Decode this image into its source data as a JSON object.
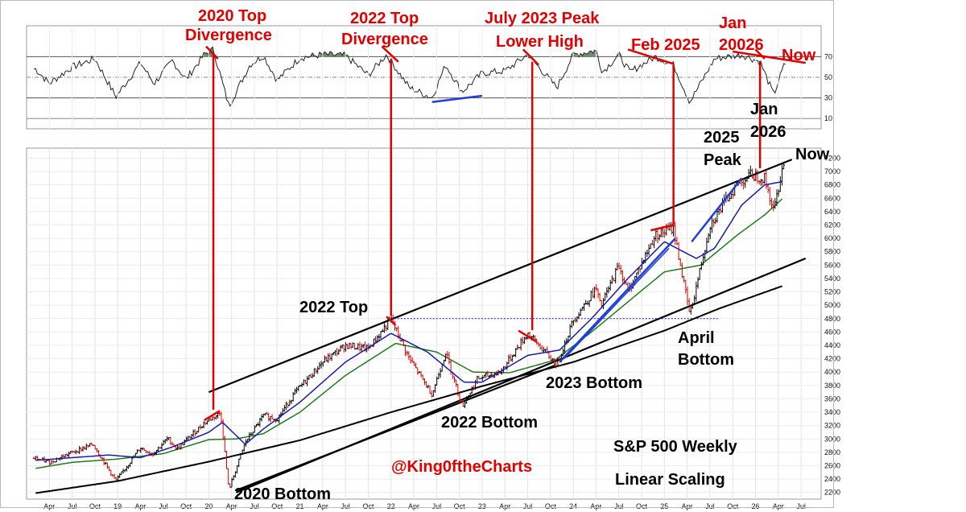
{
  "chart_data": {
    "type": "line",
    "title": "S&P 500 Weekly",
    "subtitle": "Linear Scaling",
    "handle": "@King0ftheCharts",
    "colors": {
      "price": "#000000",
      "up_bar": "#000000",
      "down_bar": "#e00000",
      "ma_short": "#1a1aa8",
      "ma_mid": "#1d7a1d",
      "ma_long": "#000000",
      "annotation": "#e00000",
      "trendline_blue": "#1f3fd6",
      "rsi": "#222222",
      "rsi_overbought_fill": "#6f8f6f"
    },
    "x_ticks": [
      {
        "t": 2018.25,
        "label": "Apr"
      },
      {
        "t": 2018.5,
        "label": "Jul"
      },
      {
        "t": 2018.75,
        "label": "Oct"
      },
      {
        "t": 2019.0,
        "label": "19"
      },
      {
        "t": 2019.25,
        "label": "Apr"
      },
      {
        "t": 2019.5,
        "label": "Jul"
      },
      {
        "t": 2019.75,
        "label": "Oct"
      },
      {
        "t": 2020.0,
        "label": "20"
      },
      {
        "t": 2020.25,
        "label": "Apr"
      },
      {
        "t": 2020.5,
        "label": "Jul"
      },
      {
        "t": 2020.75,
        "label": "Oct"
      },
      {
        "t": 2021.0,
        "label": "21"
      },
      {
        "t": 2021.25,
        "label": "Apr"
      },
      {
        "t": 2021.5,
        "label": "Jul"
      },
      {
        "t": 2021.75,
        "label": "Oct"
      },
      {
        "t": 2022.0,
        "label": "22"
      },
      {
        "t": 2022.25,
        "label": "Apr"
      },
      {
        "t": 2022.5,
        "label": "Jul"
      },
      {
        "t": 2022.75,
        "label": "Oct"
      },
      {
        "t": 2023.0,
        "label": "23"
      },
      {
        "t": 2023.25,
        "label": "Apr"
      },
      {
        "t": 2023.5,
        "label": "Jul"
      },
      {
        "t": 2023.75,
        "label": "Oct"
      },
      {
        "t": 2024.0,
        "label": "24"
      },
      {
        "t": 2024.25,
        "label": "Apr"
      },
      {
        "t": 2024.5,
        "label": "Jul"
      },
      {
        "t": 2024.75,
        "label": "Oct"
      },
      {
        "t": 2025.0,
        "label": "25"
      },
      {
        "t": 2025.25,
        "label": "Apr"
      },
      {
        "t": 2025.5,
        "label": "Jul"
      },
      {
        "t": 2025.75,
        "label": "Oct"
      },
      {
        "t": 2026.0,
        "label": "26"
      },
      {
        "t": 2026.25,
        "label": "Apr"
      },
      {
        "t": 2026.5,
        "label": "Jul"
      }
    ],
    "price_axis": {
      "ylim": [
        2100,
        7350
      ],
      "ticks": [
        2200,
        2400,
        2600,
        2800,
        3000,
        3200,
        3400,
        3600,
        3800,
        4000,
        4200,
        4400,
        4600,
        4800,
        5000,
        5200,
        5400,
        5600,
        5800,
        6000,
        6200,
        6400,
        6600,
        6800,
        7000,
        7200
      ]
    },
    "rsi_axis": {
      "ylim": [
        0,
        100
      ],
      "ticks": [
        10,
        30,
        50,
        70
      ],
      "overbought": 70,
      "midline": 50,
      "oversold": 30
    },
    "price_series": [
      {
        "t": 2018.1,
        "v": 2710
      },
      {
        "t": 2018.25,
        "v": 2650
      },
      {
        "t": 2018.5,
        "v": 2800
      },
      {
        "t": 2018.73,
        "v": 2920
      },
      {
        "t": 2018.98,
        "v": 2370
      },
      {
        "t": 2019.25,
        "v": 2870
      },
      {
        "t": 2019.38,
        "v": 2770
      },
      {
        "t": 2019.55,
        "v": 3010
      },
      {
        "t": 2019.65,
        "v": 2850
      },
      {
        "t": 2019.95,
        "v": 3240
      },
      {
        "t": 2020.13,
        "v": 3390
      },
      {
        "t": 2020.22,
        "v": 2240
      },
      {
        "t": 2020.4,
        "v": 2950
      },
      {
        "t": 2020.6,
        "v": 3350
      },
      {
        "t": 2020.75,
        "v": 3300
      },
      {
        "t": 2020.95,
        "v": 3700
      },
      {
        "t": 2021.25,
        "v": 4150
      },
      {
        "t": 2021.5,
        "v": 4400
      },
      {
        "t": 2021.75,
        "v": 4350
      },
      {
        "t": 2022.0,
        "v": 4790
      },
      {
        "t": 2022.2,
        "v": 4200
      },
      {
        "t": 2022.45,
        "v": 3670
      },
      {
        "t": 2022.6,
        "v": 4300
      },
      {
        "t": 2022.78,
        "v": 3490
      },
      {
        "t": 2022.95,
        "v": 3900
      },
      {
        "t": 2023.2,
        "v": 4000
      },
      {
        "t": 2023.5,
        "v": 4580
      },
      {
        "t": 2023.82,
        "v": 4110
      },
      {
        "t": 2024.0,
        "v": 4780
      },
      {
        "t": 2024.25,
        "v": 5250
      },
      {
        "t": 2024.3,
        "v": 4970
      },
      {
        "t": 2024.5,
        "v": 5600
      },
      {
        "t": 2024.6,
        "v": 5200
      },
      {
        "t": 2024.9,
        "v": 6050
      },
      {
        "t": 2025.1,
        "v": 6150
      },
      {
        "t": 2025.28,
        "v": 4850
      },
      {
        "t": 2025.5,
        "v": 6200
      },
      {
        "t": 2025.8,
        "v": 6820
      },
      {
        "t": 2025.95,
        "v": 6950
      },
      {
        "t": 2026.1,
        "v": 6900
      },
      {
        "t": 2026.2,
        "v": 6400
      },
      {
        "t": 2026.3,
        "v": 7100
      }
    ],
    "ma_short_series": [
      {
        "t": 2018.1,
        "v": 2680
      },
      {
        "t": 2018.5,
        "v": 2720
      },
      {
        "t": 2018.9,
        "v": 2760
      },
      {
        "t": 2019.25,
        "v": 2720
      },
      {
        "t": 2019.6,
        "v": 2880
      },
      {
        "t": 2020.0,
        "v": 3100
      },
      {
        "t": 2020.15,
        "v": 3250
      },
      {
        "t": 2020.4,
        "v": 2920
      },
      {
        "t": 2020.6,
        "v": 3150
      },
      {
        "t": 2021.0,
        "v": 3550
      },
      {
        "t": 2021.5,
        "v": 4150
      },
      {
        "t": 2022.0,
        "v": 4580
      },
      {
        "t": 2022.4,
        "v": 4300
      },
      {
        "t": 2022.8,
        "v": 3850
      },
      {
        "t": 2023.0,
        "v": 3850
      },
      {
        "t": 2023.5,
        "v": 4250
      },
      {
        "t": 2023.85,
        "v": 4330
      },
      {
        "t": 2024.2,
        "v": 4800
      },
      {
        "t": 2024.6,
        "v": 5400
      },
      {
        "t": 2025.0,
        "v": 5950
      },
      {
        "t": 2025.35,
        "v": 5700
      },
      {
        "t": 2025.55,
        "v": 5850
      },
      {
        "t": 2025.85,
        "v": 6500
      },
      {
        "t": 2026.1,
        "v": 6800
      },
      {
        "t": 2026.3,
        "v": 6850
      }
    ],
    "ma_mid_series": [
      {
        "t": 2018.1,
        "v": 2560
      },
      {
        "t": 2018.5,
        "v": 2650
      },
      {
        "t": 2019.0,
        "v": 2700
      },
      {
        "t": 2019.5,
        "v": 2780
      },
      {
        "t": 2020.0,
        "v": 2990
      },
      {
        "t": 2020.3,
        "v": 3000
      },
      {
        "t": 2020.6,
        "v": 3080
      },
      {
        "t": 2021.0,
        "v": 3400
      },
      {
        "t": 2021.5,
        "v": 3950
      },
      {
        "t": 2022.05,
        "v": 4430
      },
      {
        "t": 2022.5,
        "v": 4300
      },
      {
        "t": 2022.9,
        "v": 4000
      },
      {
        "t": 2023.3,
        "v": 3990
      },
      {
        "t": 2023.8,
        "v": 4180
      },
      {
        "t": 2024.2,
        "v": 4600
      },
      {
        "t": 2024.6,
        "v": 5050
      },
      {
        "t": 2025.0,
        "v": 5500
      },
      {
        "t": 2025.4,
        "v": 5600
      },
      {
        "t": 2025.8,
        "v": 6050
      },
      {
        "t": 2026.1,
        "v": 6350
      },
      {
        "t": 2026.3,
        "v": 6600
      }
    ],
    "ma_long_series": [
      {
        "t": 2018.1,
        "v": 2190
      },
      {
        "t": 2019.0,
        "v": 2370
      },
      {
        "t": 2020.0,
        "v": 2660
      },
      {
        "t": 2021.0,
        "v": 2980
      },
      {
        "t": 2022.0,
        "v": 3400
      },
      {
        "t": 2023.0,
        "v": 3790
      },
      {
        "t": 2024.0,
        "v": 4150
      },
      {
        "t": 2025.0,
        "v": 4620
      },
      {
        "t": 2025.6,
        "v": 4950
      },
      {
        "t": 2026.3,
        "v": 5290
      }
    ],
    "rsi_series": [
      {
        "t": 2018.1,
        "v": 58
      },
      {
        "t": 2018.25,
        "v": 44
      },
      {
        "t": 2018.5,
        "v": 60
      },
      {
        "t": 2018.75,
        "v": 68
      },
      {
        "t": 2018.98,
        "v": 31
      },
      {
        "t": 2019.25,
        "v": 64
      },
      {
        "t": 2019.4,
        "v": 44
      },
      {
        "t": 2019.6,
        "v": 66
      },
      {
        "t": 2019.75,
        "v": 48
      },
      {
        "t": 2019.95,
        "v": 72
      },
      {
        "t": 2020.05,
        "v": 77
      },
      {
        "t": 2020.22,
        "v": 22
      },
      {
        "t": 2020.45,
        "v": 62
      },
      {
        "t": 2020.6,
        "v": 71
      },
      {
        "t": 2020.75,
        "v": 47
      },
      {
        "t": 2021.0,
        "v": 69
      },
      {
        "t": 2021.25,
        "v": 72
      },
      {
        "t": 2021.5,
        "v": 71
      },
      {
        "t": 2021.75,
        "v": 52
      },
      {
        "t": 2021.95,
        "v": 72
      },
      {
        "t": 2022.2,
        "v": 40
      },
      {
        "t": 2022.45,
        "v": 30
      },
      {
        "t": 2022.6,
        "v": 62
      },
      {
        "t": 2022.78,
        "v": 36
      },
      {
        "t": 2023.0,
        "v": 54
      },
      {
        "t": 2023.25,
        "v": 56
      },
      {
        "t": 2023.5,
        "v": 72
      },
      {
        "t": 2023.82,
        "v": 40
      },
      {
        "t": 2024.0,
        "v": 72
      },
      {
        "t": 2024.25,
        "v": 76
      },
      {
        "t": 2024.32,
        "v": 55
      },
      {
        "t": 2024.5,
        "v": 72
      },
      {
        "t": 2024.62,
        "v": 55
      },
      {
        "t": 2024.9,
        "v": 70
      },
      {
        "t": 2025.1,
        "v": 62
      },
      {
        "t": 2025.28,
        "v": 26
      },
      {
        "t": 2025.55,
        "v": 68
      },
      {
        "t": 2025.85,
        "v": 72
      },
      {
        "t": 2026.05,
        "v": 65
      },
      {
        "t": 2026.2,
        "v": 33
      },
      {
        "t": 2026.32,
        "v": 63
      }
    ],
    "divergence_markers": [
      {
        "t": 2020.05,
        "rsi": 73,
        "price": 3390
      },
      {
        "t": 2022.0,
        "rsi": 68,
        "price": 4790
      },
      {
        "t": 2023.55,
        "rsi": 65,
        "price": 4580
      },
      {
        "t": 2025.1,
        "rsi": 62,
        "price": 6150
      },
      {
        "t": 2026.05,
        "rsi": 66,
        "price": 7000
      }
    ],
    "channel_upper": {
      "t1": 2020.0,
      "v1": 3700,
      "t2": 2026.4,
      "v2": 7180
    },
    "channel_lower": {
      "t1": 2020.3,
      "v1": 2200,
      "t2": 2026.55,
      "v2": 5700
    },
    "support_dotted": {
      "t1": 2022.0,
      "t2": 2025.6,
      "v": 4800
    },
    "annotations": [
      {
        "text": "2020 Top",
        "color": "red",
        "t": 2020.1,
        "y_side": "rsi",
        "line": 0
      },
      {
        "text": "Divergence",
        "color": "red",
        "t": 2020.1,
        "y_side": "rsi",
        "line": 1
      },
      {
        "text": "2022 Top",
        "color": "red",
        "t": 2022.05,
        "y_side": "rsi",
        "line": 0
      },
      {
        "text": "Divergence",
        "color": "red",
        "t": 2022.05,
        "y_side": "rsi",
        "line": 1
      },
      {
        "text": "July 2023 Peak",
        "color": "red",
        "t": 2023.6,
        "y_side": "rsi",
        "line": 0
      },
      {
        "text": "Lower High",
        "color": "red",
        "t": 2023.6,
        "y_side": "rsi",
        "line": 1
      },
      {
        "text": "Feb 2025",
        "color": "red",
        "t": 2025.0,
        "y_side": "rsi",
        "line": 2
      },
      {
        "text": "Jan",
        "color": "red",
        "t": 2025.95,
        "y_side": "rsi",
        "line": 0
      },
      {
        "text": "20026",
        "color": "red",
        "t": 2025.95,
        "y_side": "rsi",
        "line": 1
      },
      {
        "text": "Now",
        "color": "red",
        "t": 2026.5,
        "y_side": "rsi",
        "line": 3
      },
      {
        "text": "Jan",
        "color": "black",
        "t": 2026.1,
        "y_side": "mid",
        "line": 0
      },
      {
        "text": "2026",
        "color": "black",
        "t": 2026.1,
        "y_side": "mid",
        "line": 1
      },
      {
        "text": "2025",
        "color": "black",
        "t": 2025.65,
        "y_side": "mid",
        "line": 2
      },
      {
        "text": "Peak",
        "color": "black",
        "t": 2025.65,
        "y_side": "mid",
        "line": 3
      },
      {
        "text": "Now",
        "color": "black",
        "t": 2026.55,
        "y_side": "mid",
        "line": 4
      },
      {
        "text": "2022 Top",
        "color": "black",
        "t": 2021.4,
        "y_side": "price",
        "v": 4800
      },
      {
        "text": "April",
        "color": "black",
        "t": 2025.5,
        "y_side": "price",
        "v": 4700
      },
      {
        "text": "Bottom",
        "color": "black",
        "t": 2025.55,
        "y_side": "price",
        "v": 4400
      },
      {
        "text": "2023 Bottom",
        "color": "black",
        "t": 2024.2,
        "y_side": "price",
        "v": 3850
      },
      {
        "text": "2022 Bottom",
        "color": "black",
        "t": 2022.85,
        "y_side": "price",
        "v": 3370
      },
      {
        "text": "2020 Bottom",
        "color": "black",
        "t": 2021.0,
        "y_side": "price",
        "v": 2150
      }
    ]
  }
}
